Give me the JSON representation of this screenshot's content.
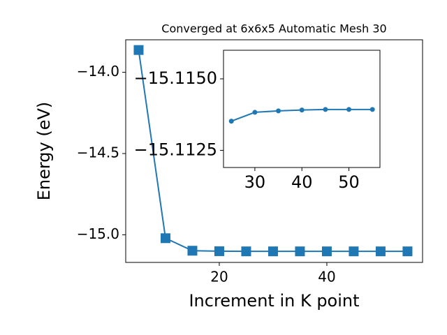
{
  "chart_data": [
    {
      "type": "line",
      "title": "Converged at 6x6x5 Automatic Mesh 30",
      "x_label": "Increment in K point",
      "y_label": "Energy (eV)",
      "marker": "square",
      "color": "#1f77b4",
      "x": [
        5,
        10,
        15,
        20,
        25,
        30,
        35,
        40,
        45,
        50,
        55
      ],
      "values": [
        -13.863,
        -15.021,
        -15.098,
        -15.101,
        -15.102,
        -15.102,
        -15.102,
        -15.102,
        -15.102,
        -15.102,
        -15.102
      ],
      "xlim": [
        2.6,
        57.8
      ],
      "ylim": [
        -15.17,
        -13.8
      ],
      "xticks": [
        20,
        40
      ],
      "yticks": [
        {
          "value": -15.0,
          "label": "−15.0"
        },
        {
          "value": -14.5,
          "label": "−14.5"
        },
        {
          "value": -14.0,
          "label": "−14.0"
        }
      ]
    },
    {
      "type": "line",
      "marker": "circle",
      "color": "#1f77b4",
      "x": [
        25,
        30,
        35,
        40,
        45,
        50,
        55
      ],
      "values": [
        -15.11352,
        -15.11383,
        -15.11388,
        -15.11391,
        -15.11393,
        -15.11393,
        -15.11393
      ],
      "xlim": [
        23.33,
        56.6
      ],
      "ylim": [
        -15.1119,
        -15.116
      ],
      "xticks": [
        30,
        40,
        50
      ],
      "yticks": [
        {
          "value": -15.1125,
          "label": "−15.1125"
        },
        {
          "value": -15.115,
          "label": "−15.1150"
        }
      ]
    }
  ]
}
